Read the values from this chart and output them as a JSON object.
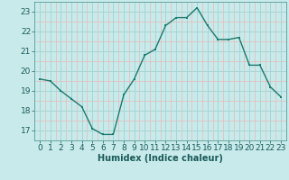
{
  "x": [
    0,
    1,
    2,
    3,
    4,
    5,
    6,
    7,
    8,
    9,
    10,
    11,
    12,
    13,
    14,
    15,
    16,
    17,
    18,
    19,
    20,
    21,
    22,
    23
  ],
  "y": [
    19.6,
    19.5,
    19.0,
    18.6,
    18.2,
    17.1,
    16.8,
    16.8,
    18.8,
    19.6,
    20.8,
    21.1,
    22.3,
    22.7,
    22.7,
    23.2,
    22.3,
    21.6,
    21.6,
    21.7,
    20.3,
    20.3,
    19.2,
    18.7
  ],
  "line_color": "#1a7a6e",
  "marker": "s",
  "marker_size": 2,
  "bg_color": "#c8eaea",
  "grid_major_color": "#aad4d4",
  "grid_minor_color": "#e8b8b8",
  "xlabel": "Humidex (Indice chaleur)",
  "ylim": [
    16.5,
    23.5
  ],
  "xlim": [
    -0.5,
    23.5
  ],
  "yticks": [
    17,
    18,
    19,
    20,
    21,
    22,
    23
  ],
  "xticks": [
    0,
    1,
    2,
    3,
    4,
    5,
    6,
    7,
    8,
    9,
    10,
    11,
    12,
    13,
    14,
    15,
    16,
    17,
    18,
    19,
    20,
    21,
    22,
    23
  ],
  "xlabel_fontsize": 7,
  "tick_fontsize": 6.5,
  "line_width": 1.0
}
